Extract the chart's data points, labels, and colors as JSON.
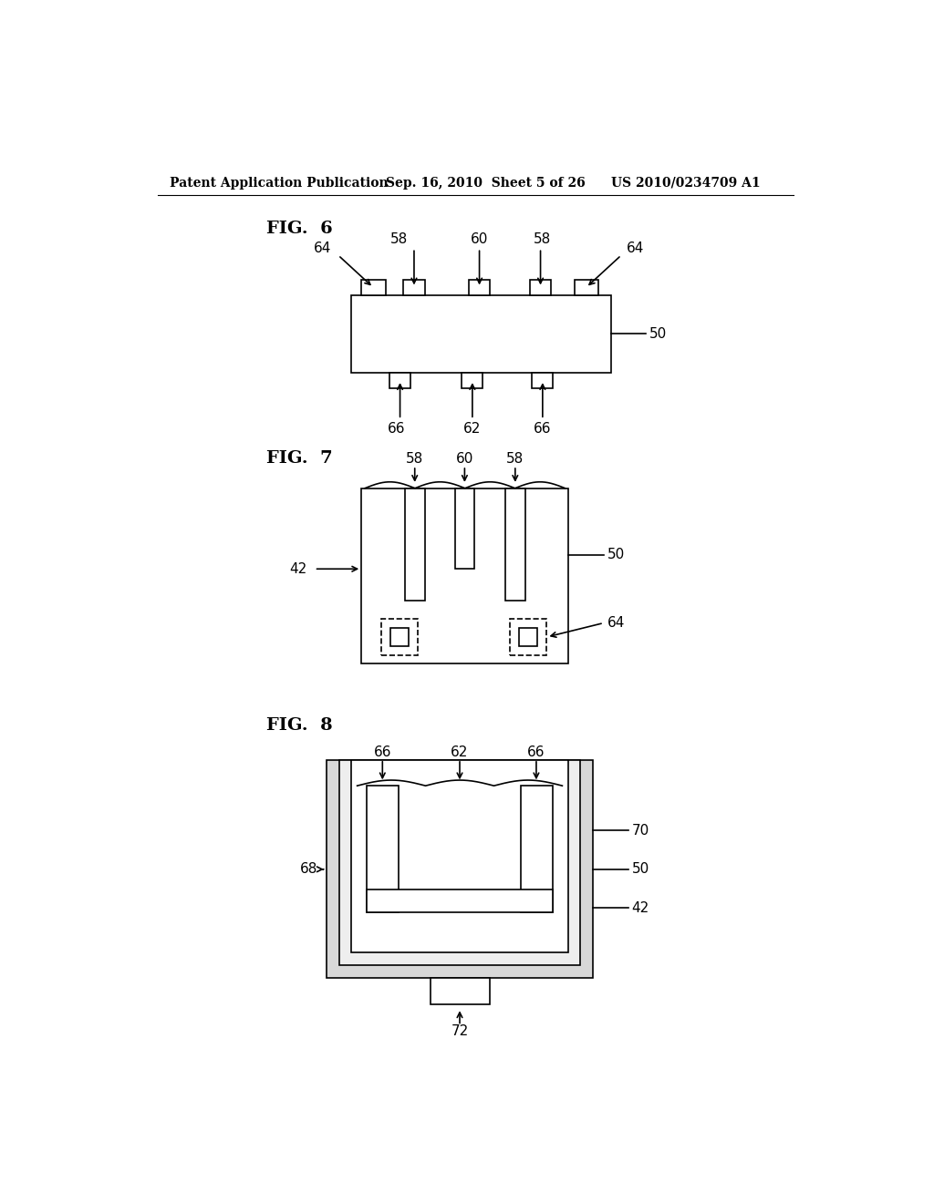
{
  "bg_color": "#ffffff",
  "header_left": "Patent Application Publication",
  "header_center": "Sep. 16, 2010  Sheet 5 of 26",
  "header_right": "US 2010/0234709 A1",
  "fig6_label": "FIG.  6",
  "fig7_label": "FIG.  7",
  "fig8_label": "FIG.  8"
}
